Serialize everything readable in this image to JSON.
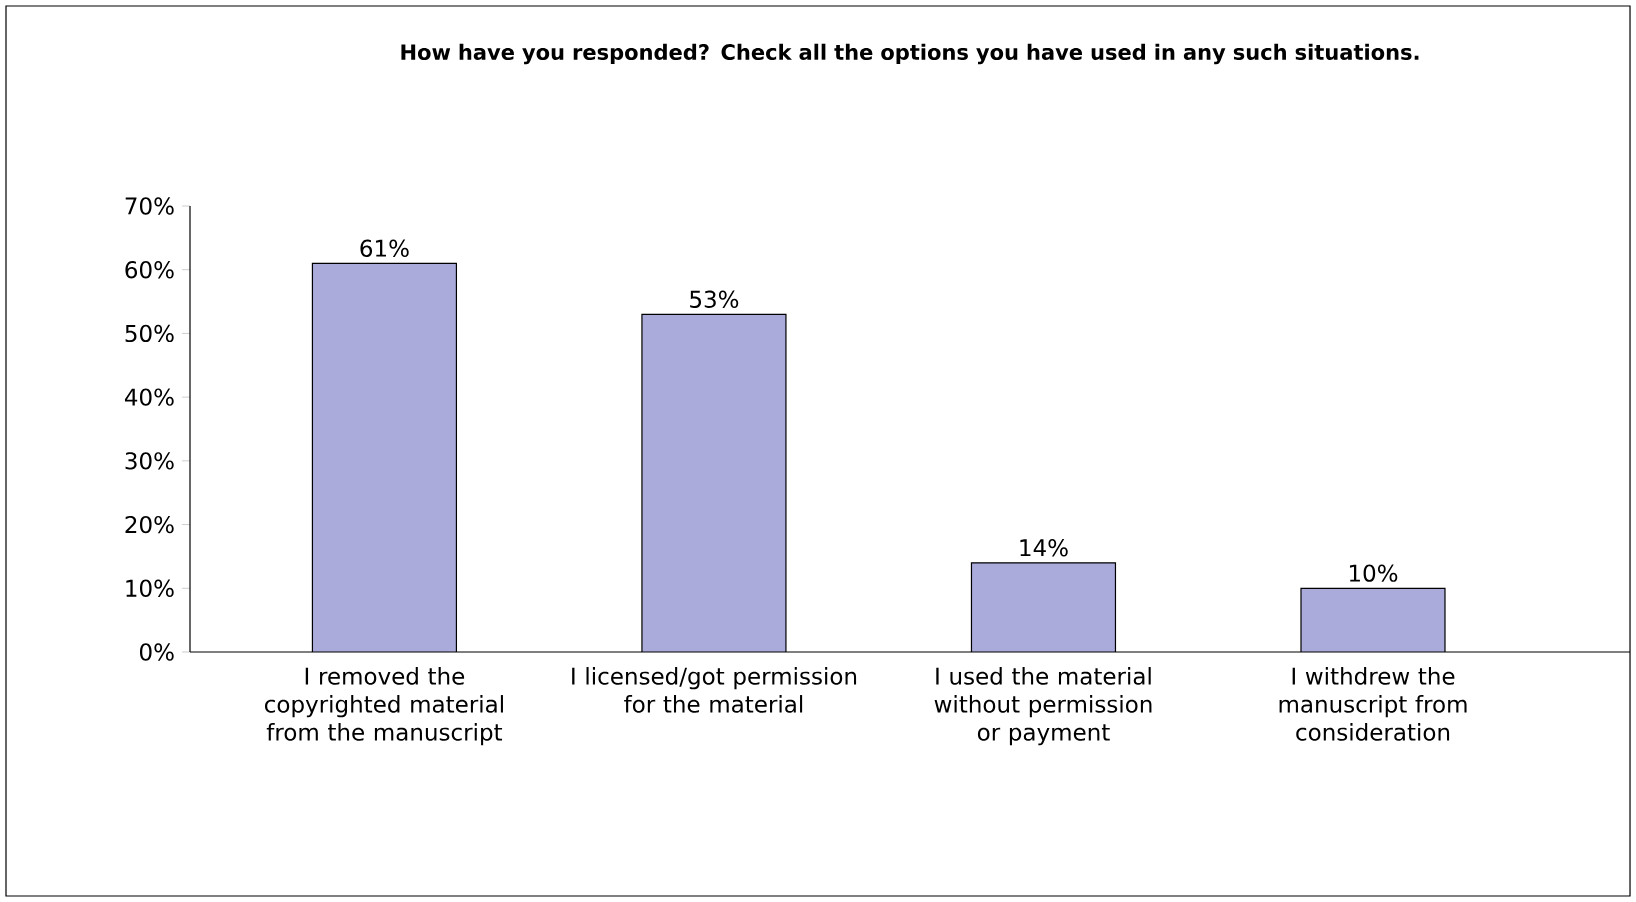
{
  "chart_data": {
    "type": "bar",
    "title": "How have you responded? Check all the options you have used in any such situations.",
    "categories": [
      "I removed the copyrighted material from the manuscript",
      "I licensed/got permission for the material",
      "I used the material without permission or payment",
      "I withdrew the manuscript from consideration"
    ],
    "values": [
      61,
      53,
      14,
      10
    ],
    "value_labels": [
      "61%",
      "53%",
      "14%",
      "10%"
    ],
    "color": "#aaaadb",
    "ylim": [
      0,
      70
    ],
    "yticks": [
      {
        "value": 0,
        "label": "0%"
      },
      {
        "value": 10,
        "label": "10%"
      },
      {
        "value": 20,
        "label": "20%"
      },
      {
        "value": 30,
        "label": "30%"
      },
      {
        "value": 40,
        "label": "40%"
      },
      {
        "value": 50,
        "label": "50%"
      },
      {
        "value": 60,
        "label": "60%"
      },
      {
        "value": 70,
        "label": "70%"
      }
    ],
    "grid": false
  }
}
